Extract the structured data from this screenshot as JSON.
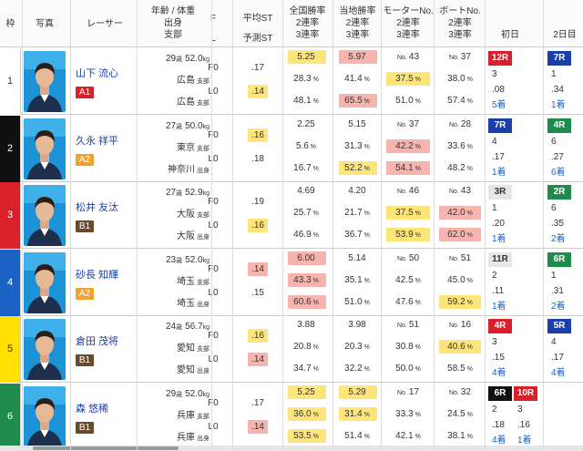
{
  "headers": {
    "waku": "枠",
    "photo": "写真",
    "racer": "レーサー",
    "profile": [
      "年齢 / 体重",
      "出身",
      "支部"
    ],
    "fl": [
      "F",
      "L"
    ],
    "st": [
      "平均ST",
      "予測ST"
    ],
    "national": [
      "全国勝率",
      "2連率",
      "3連率"
    ],
    "local": [
      "当地勝率",
      "2連率",
      "3連率"
    ],
    "motor": [
      "モーターNo.",
      "2連率",
      "3連率"
    ],
    "boat": [
      "ボートNo.",
      "2連率",
      "3連率"
    ],
    "day1": "初日",
    "day2": "2日目"
  },
  "colors": {
    "accent_blue": "#1a3fa8",
    "highlight_yellow": "#fde57a",
    "highlight_pink": "#f7b4ae",
    "class_a1": "#d9212b",
    "class_a2": "#f0a131",
    "class_b1": "#6b4a2b",
    "race_blue": "#1a3fa8",
    "race_red": "#d9212b",
    "race_green": "#1f8c4e",
    "race_black": "#111111"
  },
  "racers": [
    {
      "waku": "1",
      "waku_color": "#ffffff",
      "waku_text": "#333333",
      "name": "山下 流心",
      "class": "A1",
      "class_color": "#d9212b",
      "age": "29",
      "weight": "52.0",
      "home": "広島",
      "home_suffix": "支部",
      "origin": "広島",
      "origin_suffix": "支部",
      "f": "F0",
      "l": "L0",
      "avg_st": ".17",
      "pred_st": ".14",
      "nat": [
        "5.25",
        "28.3",
        "48.1"
      ],
      "loc": [
        "5.97",
        "41.4",
        "65.5"
      ],
      "motor_no": "43",
      "motor": [
        "37.5",
        "51.0"
      ],
      "boat_no": "37",
      "boat": [
        "38.0",
        "57.4"
      ],
      "d1": {
        "races": [
          {
            "label": "12R",
            "color": "#d9212b"
          }
        ],
        "vals": [
          "3",
          ".08",
          "5着"
        ]
      },
      "d2": {
        "races": [
          {
            "label": "7R",
            "color": "#1a3fa8"
          }
        ],
        "vals": [
          "1",
          ".34",
          "1着"
        ]
      }
    },
    {
      "waku": "2",
      "waku_color": "#111111",
      "waku_text": "#ffffff",
      "name": "久永 祥平",
      "class": "A2",
      "class_color": "#f0a131",
      "age": "27",
      "weight": "50.0",
      "home": "東京",
      "home_suffix": "支部",
      "origin": "神奈川",
      "origin_suffix": "出身",
      "f": "F0",
      "l": "L0",
      "avg_st": ".16",
      "pred_st": ".18",
      "nat": [
        "2.25",
        "5.6",
        "16.7"
      ],
      "loc": [
        "5.15",
        "31.3",
        "52.2"
      ],
      "motor_no": "37",
      "motor": [
        "42.2",
        "54.1"
      ],
      "boat_no": "28",
      "boat": [
        "33.6",
        "48.2"
      ],
      "d1": {
        "races": [
          {
            "label": "7R",
            "color": "#1a3fa8"
          }
        ],
        "vals": [
          "4",
          ".17",
          "1着"
        ]
      },
      "d2": {
        "races": [
          {
            "label": "4R",
            "color": "#1f8c4e"
          }
        ],
        "vals": [
          "6",
          ".27",
          "6着"
        ]
      }
    },
    {
      "waku": "3",
      "waku_color": "#d9212b",
      "waku_text": "#ffffff",
      "name": "松井 友汰",
      "class": "B1",
      "class_color": "#6b4a2b",
      "age": "27",
      "weight": "52.9",
      "home": "大阪",
      "home_suffix": "支部",
      "origin": "大阪",
      "origin_suffix": "出身",
      "f": "F0",
      "l": "L0",
      "avg_st": ".19",
      "pred_st": ".16",
      "nat": [
        "4.69",
        "25.7",
        "46.9"
      ],
      "loc": [
        "4.20",
        "21.7",
        "36.7"
      ],
      "motor_no": "46",
      "motor": [
        "37.5",
        "53.9"
      ],
      "boat_no": "43",
      "boat": [
        "42.0",
        "62.0"
      ],
      "d1": {
        "races": [
          {
            "label": "3R",
            "color": "#e6e6e6"
          }
        ],
        "vals": [
          "1",
          ".20",
          "1着"
        ]
      },
      "d2": {
        "races": [
          {
            "label": "2R",
            "color": "#1f8c4e"
          }
        ],
        "vals": [
          "6",
          ".35",
          "2着"
        ]
      }
    },
    {
      "waku": "4",
      "waku_color": "#1a63c4",
      "waku_text": "#ffffff",
      "name": "砂長 知輝",
      "class": "A2",
      "class_color": "#f0a131",
      "age": "23",
      "weight": "52.0",
      "home": "埼玉",
      "home_suffix": "支部",
      "origin": "埼玉",
      "origin_suffix": "出身",
      "f": "F0",
      "l": "L0",
      "avg_st": ".14",
      "pred_st": ".15",
      "nat": [
        "6.00",
        "43.3",
        "60.6"
      ],
      "loc": [
        "5.14",
        "35.1",
        "51.0"
      ],
      "motor_no": "50",
      "motor": [
        "42.5",
        "47.6"
      ],
      "boat_no": "51",
      "boat": [
        "45.0",
        "59.2"
      ],
      "d1": {
        "races": [
          {
            "label": "11R",
            "color": "#e6e6e6"
          }
        ],
        "vals": [
          "2",
          ".11",
          "1着"
        ]
      },
      "d2": {
        "races": [
          {
            "label": "6R",
            "color": "#1f8c4e"
          }
        ],
        "vals": [
          "1",
          ".31",
          "2着"
        ]
      }
    },
    {
      "waku": "5",
      "waku_color": "#ffe000",
      "waku_text": "#333333",
      "name": "倉田 茂将",
      "class": "B1",
      "class_color": "#6b4a2b",
      "age": "24",
      "weight": "56.7",
      "home": "愛知",
      "home_suffix": "支部",
      "origin": "愛知",
      "origin_suffix": "出身",
      "f": "F0",
      "l": "L0",
      "avg_st": ".16",
      "pred_st": ".14",
      "nat": [
        "3.88",
        "20.8",
        "34.7"
      ],
      "loc": [
        "3.98",
        "20.3",
        "32.2"
      ],
      "motor_no": "51",
      "motor": [
        "30.8",
        "50.0"
      ],
      "boat_no": "16",
      "boat": [
        "40.6",
        "58.5"
      ],
      "d1": {
        "races": [
          {
            "label": "4R",
            "color": "#d9212b"
          }
        ],
        "vals": [
          "3",
          ".15",
          "4着"
        ]
      },
      "d2": {
        "races": [
          {
            "label": "5R",
            "color": "#1a3fa8"
          }
        ],
        "vals": [
          "4",
          ".17",
          "4着"
        ]
      }
    },
    {
      "waku": "6",
      "waku_color": "#1f8c4e",
      "waku_text": "#ffffff",
      "name": "森 悠稀",
      "class": "B1",
      "class_color": "#6b4a2b",
      "age": "29",
      "weight": "52.0",
      "home": "兵庫",
      "home_suffix": "支部",
      "origin": "兵庫",
      "origin_suffix": "出身",
      "f": "F0",
      "l": "L0",
      "avg_st": ".17",
      "pred_st": ".14",
      "nat": [
        "5.25",
        "36.0",
        "53.5"
      ],
      "loc": [
        "5.29",
        "31.4",
        "51.4"
      ],
      "motor_no": "17",
      "motor": [
        "33.3",
        "42.1"
      ],
      "boat_no": "32",
      "boat": [
        "24.5",
        "38.1"
      ],
      "d1": {
        "races": [
          {
            "label": "6R",
            "color": "#111111"
          },
          {
            "label": "10R",
            "color": "#d9212b"
          }
        ],
        "vals": [
          "2",
          "3",
          ".18",
          ".16",
          "4着",
          "1着"
        ]
      },
      "d2": {
        "races": [],
        "vals": []
      }
    }
  ],
  "highlights": {
    "0": {
      "nat0": "y",
      "loc0": "p",
      "loc2": "p",
      "motor0": "y",
      "pred": "y"
    },
    "1": {
      "avg": "y",
      "loc2": "y",
      "motor0": "p",
      "motor1": "p"
    },
    "2": {
      "pred": "y",
      "motor0": "y",
      "motor1": "y",
      "boat0": "p",
      "boat1": "p"
    },
    "3": {
      "avg": "p",
      "nat0": "p",
      "nat1": "p",
      "nat2": "p",
      "boat1": "y"
    },
    "4": {
      "avg": "y",
      "pred": "p",
      "boat0": "y"
    },
    "5": {
      "pred": "p",
      "nat0": "y",
      "nat1": "y",
      "nat2": "y",
      "loc0": "y",
      "loc1": "y"
    }
  },
  "units": {
    "age": "歳",
    "weight": "kg",
    "pct": "%",
    "no": "No."
  }
}
